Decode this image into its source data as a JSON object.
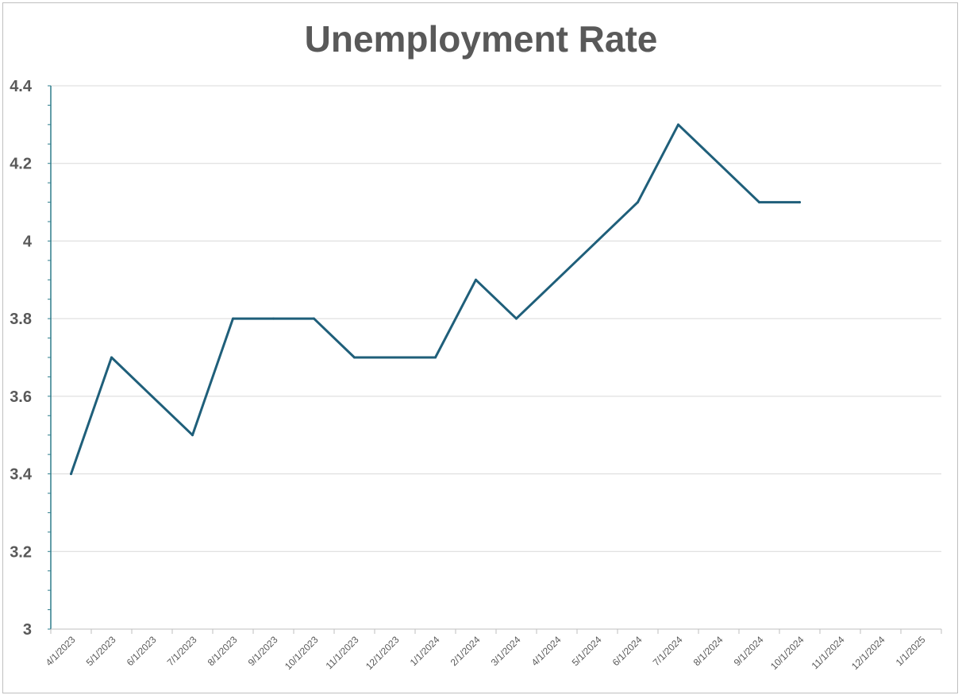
{
  "chart_data": {
    "type": "line",
    "title": "Unemployment Rate",
    "xlabel": "",
    "ylabel": "",
    "ylim": [
      3,
      4.4
    ],
    "yticks": [
      "3",
      "3.2",
      "3.4",
      "3.6",
      "3.8",
      "4",
      "4.2",
      "4.4"
    ],
    "categories": [
      "4/1/2023",
      "5/1/2023",
      "6/1/2023",
      "7/1/2023",
      "8/1/2023",
      "9/1/2023",
      "10/1/2023",
      "11/1/2023",
      "12/1/2023",
      "1/1/2024",
      "2/1/2024",
      "3/1/2024",
      "4/1/2024",
      "5/1/2024",
      "6/1/2024",
      "7/1/2024",
      "8/1/2024",
      "9/1/2024",
      "10/1/2024",
      "11/1/2024",
      "12/1/2024",
      "1/1/2025"
    ],
    "series": [
      {
        "values": [
          3.4,
          3.7,
          3.6,
          3.5,
          3.8,
          3.8,
          3.8,
          3.7,
          3.7,
          3.7,
          3.9,
          3.8,
          3.9,
          4.0,
          4.1,
          4.3,
          4.2,
          4.1,
          4.1,
          null,
          null,
          null
        ]
      }
    ],
    "grid": true,
    "legend": "none",
    "colors": {
      "line": "#1f5f7a",
      "grid": "#d9d9d9",
      "axis": "#2e7d8c",
      "text": "#595959"
    }
  }
}
